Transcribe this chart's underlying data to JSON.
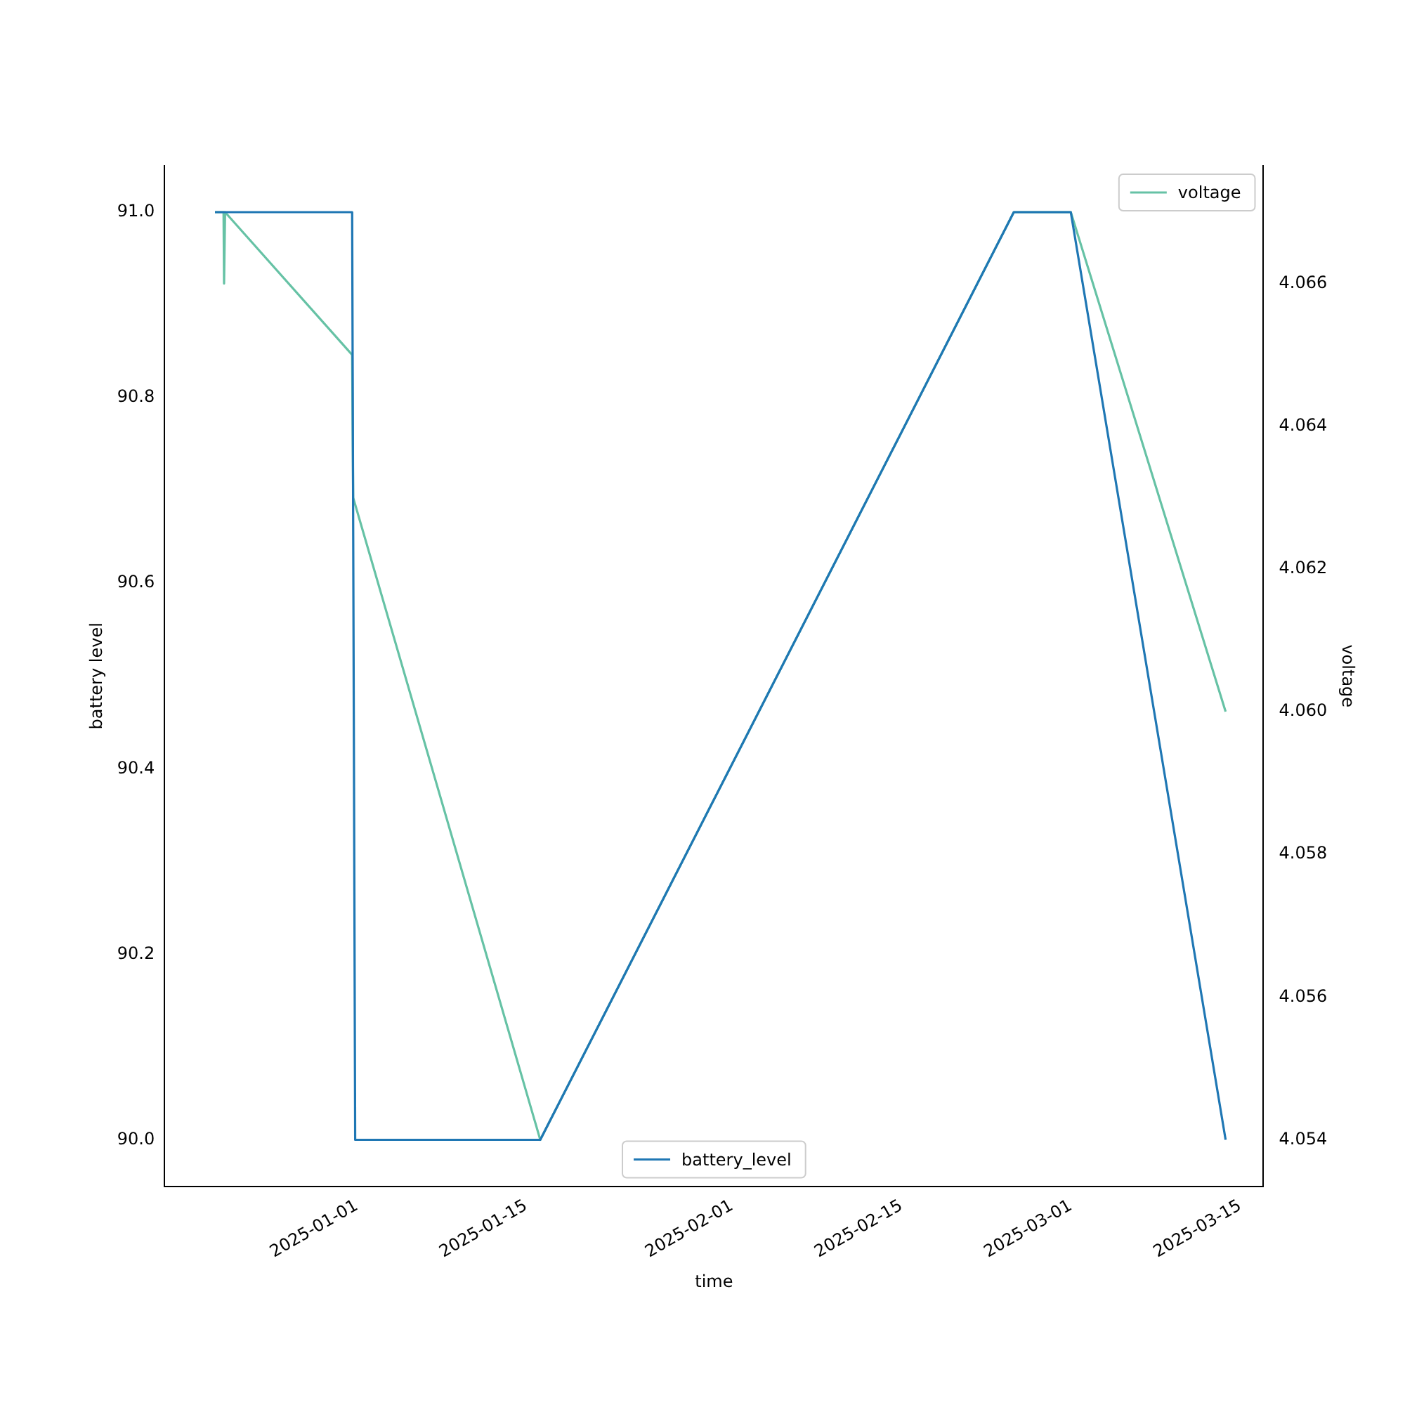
{
  "chart_data": {
    "type": "line",
    "xlabel": "time",
    "ylabel": "battery level",
    "y2label": "voltage",
    "xlim": [
      "2024-12-16T03:00",
      "2025-03-16T22:00"
    ],
    "xticks": [
      "2025-01-01",
      "2025-01-15",
      "2025-02-01",
      "2025-02-15",
      "2025-03-01",
      "2025-03-15"
    ],
    "ylim": [
      89.95,
      91.05
    ],
    "yticks": [
      {
        "value": 90,
        "label": "90.0"
      },
      90.2,
      90.4,
      90.6,
      90.8,
      {
        "value": 91,
        "label": "91.0"
      }
    ],
    "y2lim": [
      4.05335,
      4.06765
    ],
    "y2ticks": [
      4.054,
      4.056,
      4.058,
      {
        "value": 4.06,
        "label": "4.060"
      },
      4.062,
      4.064,
      4.066
    ],
    "grid": false,
    "legend": [
      "bottom",
      "top right"
    ],
    "series": [
      {
        "name": "battery_level",
        "color": "#1f77b4",
        "x": [
          "2024-12-20T07:00",
          "2024-12-21T00:00",
          "2024-12-31T15:00",
          "2024-12-31T21:00",
          "2025-01-16T04:00",
          "2025-02-24T07:00",
          "2025-03-01T00:00",
          "2025-03-13T19:00"
        ],
        "values": [
          91,
          91,
          91,
          90,
          90,
          91,
          91,
          90
        ]
      },
      {
        "name": "voltage",
        "color": "#66c2a5",
        "axis": "y2",
        "x": [
          "2024-12-20T07:00",
          "2024-12-21T00:00",
          "2024-12-21T01:00",
          "2024-12-21T03:00",
          "2024-12-31T15:00",
          "2024-12-31T17:00",
          "2025-01-16T04:00",
          "2025-02-24T07:00",
          "2025-03-01T00:00",
          "2025-03-13T19:00"
        ],
        "values": [
          4.067,
          4.067,
          4.066,
          4.067,
          4.065,
          4.063,
          4.054,
          4.067,
          4.067,
          4.06
        ]
      }
    ]
  }
}
